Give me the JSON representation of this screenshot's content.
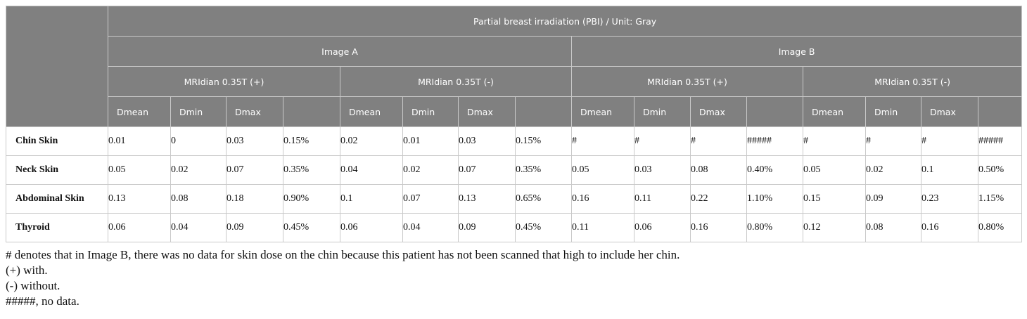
{
  "table": {
    "title": "Partial breast irradiation (PBI) / Unit: Gray",
    "images": [
      "Image A",
      "Image B"
    ],
    "conditions": [
      "MRIdian 0.35T (+)",
      "MRIdian 0.35T (-)",
      "MRIdian 0.35T (+)",
      "MRIdian 0.35T (-)"
    ],
    "metrics": [
      "Dmean",
      "Dmin",
      "Dmax",
      ""
    ],
    "rows": [
      {
        "label": "Chin Skin",
        "cells": [
          "0.01",
          "0",
          "0.03",
          "0.15%",
          "0.02",
          "0.01",
          "0.03",
          "0.15%",
          "#",
          "#",
          "#",
          "#####",
          "#",
          "#",
          "#",
          "#####"
        ]
      },
      {
        "label": "Neck Skin",
        "cells": [
          "0.05",
          "0.02",
          "0.07",
          "0.35%",
          "0.04",
          "0.02",
          "0.07",
          "0.35%",
          "0.05",
          "0.03",
          "0.08",
          "0.40%",
          "0.05",
          "0.02",
          "0.1",
          "0.50%"
        ]
      },
      {
        "label": "Abdominal Skin",
        "cells": [
          "0.13",
          "0.08",
          "0.18",
          "0.90%",
          "0.1",
          "0.07",
          "0.13",
          "0.65%",
          "0.16",
          "0.11",
          "0.22",
          "1.10%",
          "0.15",
          "0.09",
          "0.23",
          "1.15%"
        ]
      },
      {
        "label": "Thyroid",
        "cells": [
          "0.06",
          "0.04",
          "0.09",
          "0.45%",
          "0.06",
          "0.04",
          "0.09",
          "0.45%",
          "0.11",
          "0.06",
          "0.16",
          "0.80%",
          "0.12",
          "0.08",
          "0.16",
          "0.80%"
        ]
      }
    ]
  },
  "footnotes": [
    "# denotes that in Image B, there was no data for skin dose on the chin because this patient has not been scanned that high to include her chin.",
    "(+) with.",
    "(-) without.",
    "#####, no data."
  ],
  "colors": {
    "header_bg": "#808080",
    "header_text": "#ffffff",
    "border": "#c9c9c9"
  }
}
